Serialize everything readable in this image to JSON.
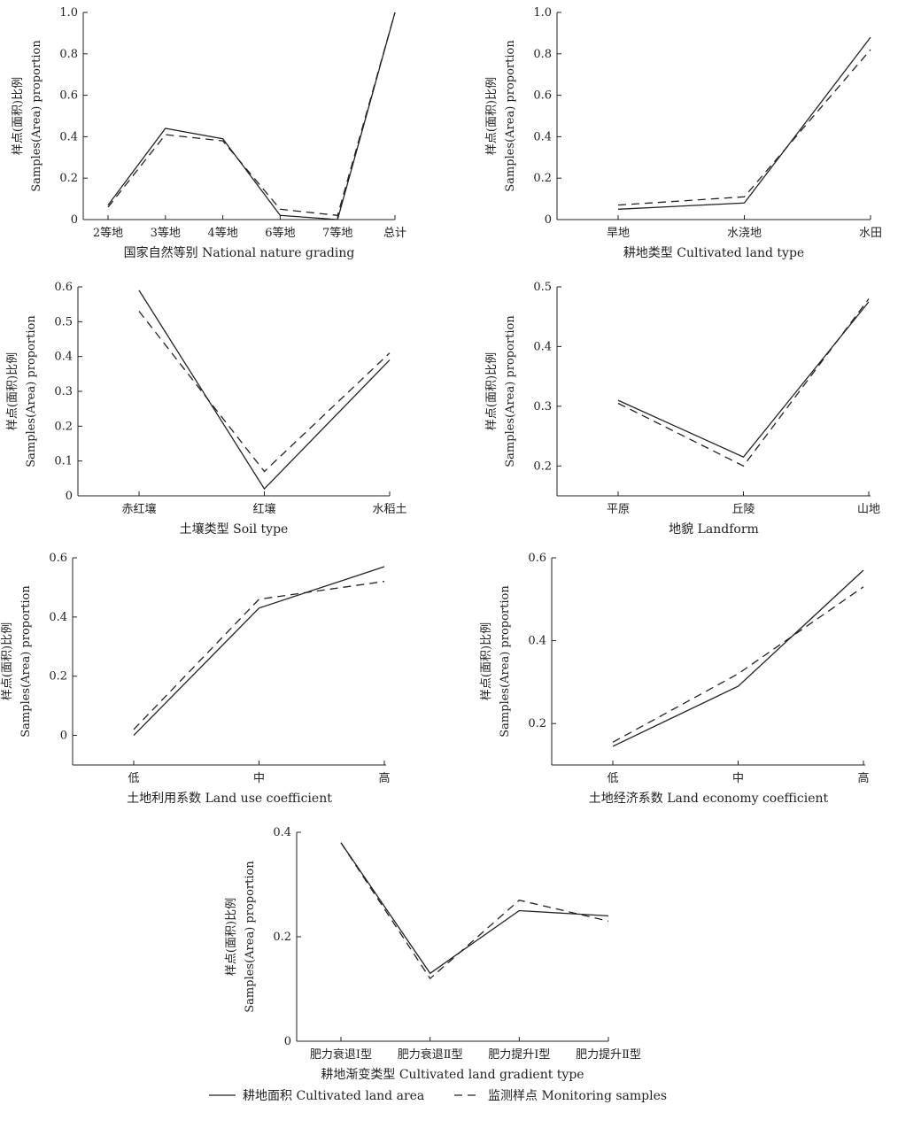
{
  "ylabel_lines": [
    "样点(面积)比例",
    "Samples(Area) proportion"
  ],
  "legend": {
    "cultivated_label": "耕地面积 Cultivated land area",
    "monitoring_label": "监测样点 Monitoring samples"
  },
  "chart_data": [
    {
      "type": "line",
      "categories": [
        "2等地",
        "3等地",
        "4等地",
        "6等地",
        "7等地",
        "总计"
      ],
      "xlabel": "国家自然等别 National nature grading",
      "ylim": [
        0,
        1.0
      ],
      "yticks": [
        "0",
        "0.2",
        "0.4",
        "0.6",
        "0.8",
        "1.0"
      ],
      "ytick_values": [
        0,
        0.2,
        0.4,
        0.6,
        0.8,
        1.0
      ],
      "series": [
        {
          "name": "耕地面积 Cultivated land area",
          "style": "solid",
          "values": [
            0.07,
            0.44,
            0.39,
            0.02,
            0.0,
            1.0
          ]
        },
        {
          "name": "监测样点 Monitoring samples",
          "style": "dashed",
          "values": [
            0.06,
            0.41,
            0.38,
            0.05,
            0.02,
            1.0
          ]
        }
      ]
    },
    {
      "type": "line",
      "categories": [
        "旱地",
        "水浇地",
        "水田"
      ],
      "xlabel": "耕地类型 Cultivated land type",
      "ylim": [
        0,
        1.0
      ],
      "yticks": [
        "0",
        "0.2",
        "0.4",
        "0.6",
        "0.8",
        "1.0"
      ],
      "ytick_values": [
        0,
        0.2,
        0.4,
        0.6,
        0.8,
        1.0
      ],
      "series": [
        {
          "name": "耕地面积 Cultivated land area",
          "style": "solid",
          "values": [
            0.05,
            0.08,
            0.88
          ]
        },
        {
          "name": "监测样点 Monitoring samples",
          "style": "dashed",
          "values": [
            0.07,
            0.11,
            0.82
          ]
        }
      ]
    },
    {
      "type": "line",
      "categories": [
        "赤红壤",
        "红壤",
        "水稻土"
      ],
      "xlabel": "土壤类型 Soil type",
      "ylim": [
        0,
        0.6
      ],
      "yticks": [
        "0",
        "0.1",
        "0.2",
        "0.3",
        "0.4",
        "0.5",
        "0.6"
      ],
      "ytick_values": [
        0,
        0.1,
        0.2,
        0.3,
        0.4,
        0.5,
        0.6
      ],
      "series": [
        {
          "name": "耕地面积 Cultivated land area",
          "style": "solid",
          "values": [
            0.59,
            0.02,
            0.39
          ]
        },
        {
          "name": "监测样点 Monitoring samples",
          "style": "dashed",
          "values": [
            0.53,
            0.07,
            0.41
          ]
        }
      ]
    },
    {
      "type": "line",
      "categories": [
        "平原",
        "丘陵",
        "山地"
      ],
      "xlabel": "地貌 Landform",
      "ylim": [
        0.15,
        0.5
      ],
      "yticks": [
        "0.2",
        "0.3",
        "0.4",
        "0.5"
      ],
      "ytick_values": [
        0.2,
        0.3,
        0.4,
        0.5
      ],
      "series": [
        {
          "name": "耕地面积 Cultivated land area",
          "style": "solid",
          "values": [
            0.31,
            0.215,
            0.475
          ]
        },
        {
          "name": "监测样点 Monitoring samples",
          "style": "dashed",
          "values": [
            0.305,
            0.2,
            0.48
          ]
        }
      ]
    },
    {
      "type": "line",
      "categories": [
        "低",
        "中",
        "高"
      ],
      "xlabel": "土地利用系数 Land use coefficient",
      "ylim": [
        -0.1,
        0.6
      ],
      "yticks": [
        "0",
        "0.2",
        "0.4",
        "0.6"
      ],
      "ytick_values": [
        0,
        0.2,
        0.4,
        0.6
      ],
      "series": [
        {
          "name": "耕地面积 Cultivated land area",
          "style": "solid",
          "values": [
            0.0,
            0.43,
            0.57
          ]
        },
        {
          "name": "监测样点 Monitoring samples",
          "style": "dashed",
          "values": [
            0.02,
            0.46,
            0.52
          ]
        }
      ]
    },
    {
      "type": "line",
      "categories": [
        "低",
        "中",
        "高"
      ],
      "xlabel": "土地经济系数 Land economy coefficient",
      "ylim": [
        0.1,
        0.6
      ],
      "yticks": [
        "0.2",
        "0.4",
        "0.6"
      ],
      "ytick_values": [
        0.2,
        0.4,
        0.6
      ],
      "series": [
        {
          "name": "耕地面积 Cultivated land area",
          "style": "solid",
          "values": [
            0.145,
            0.29,
            0.57
          ]
        },
        {
          "name": "监测样点 Monitoring samples",
          "style": "dashed",
          "values": [
            0.155,
            0.32,
            0.53
          ]
        }
      ]
    },
    {
      "type": "line",
      "categories": [
        "肥力衰退Ⅰ型",
        "肥力衰退Ⅱ型",
        "肥力提升Ⅰ型",
        "肥力提升Ⅱ型"
      ],
      "xlabel": "耕地渐变类型 Cultivated land gradient type",
      "ylim": [
        0,
        0.4
      ],
      "yticks": [
        "0",
        "0.2",
        "0.4"
      ],
      "ytick_values": [
        0,
        0.2,
        0.4
      ],
      "series": [
        {
          "name": "耕地面积 Cultivated land area",
          "style": "solid",
          "values": [
            0.38,
            0.13,
            0.25,
            0.24
          ]
        },
        {
          "name": "监测样点 Monitoring samples",
          "style": "dashed",
          "values": [
            0.38,
            0.12,
            0.27,
            0.23
          ]
        }
      ]
    }
  ]
}
